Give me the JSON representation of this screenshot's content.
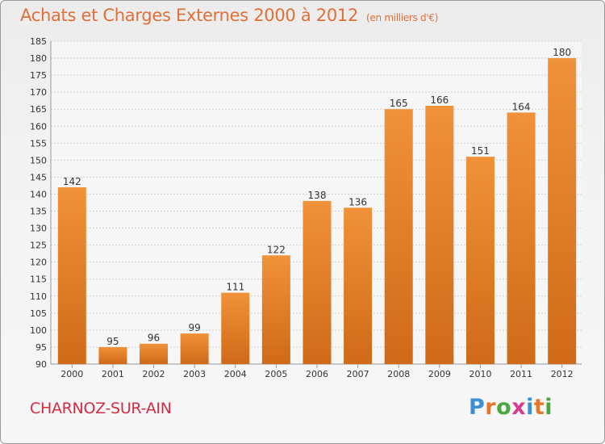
{
  "header": {
    "title": "Achats et Charges Externes 2000 à 2012",
    "unit": "(en milliers d'€)"
  },
  "location": "CHARNOZ-SUR-AIN",
  "logo": {
    "text": "Proxiti",
    "colors": [
      "#3d8fd6",
      "#e8762a",
      "#4aa83e",
      "#d63b8f",
      "#3d8fd6",
      "#e8762a",
      "#4aa83e"
    ]
  },
  "chart_data": {
    "type": "bar",
    "categories": [
      "2000",
      "2001",
      "2002",
      "2003",
      "2004",
      "2005",
      "2006",
      "2007",
      "2008",
      "2009",
      "2010",
      "2011",
      "2012"
    ],
    "values": [
      142,
      95,
      96,
      99,
      111,
      122,
      138,
      136,
      165,
      166,
      151,
      164,
      180
    ],
    "ylim": [
      90,
      185
    ],
    "ytick_step": 5,
    "grid": true,
    "bar_color": "#f0923a",
    "bar_color_dark": "#cf6a18",
    "title": "Achats et Charges Externes 2000 à 2012",
    "xlabel": "",
    "ylabel": ""
  }
}
